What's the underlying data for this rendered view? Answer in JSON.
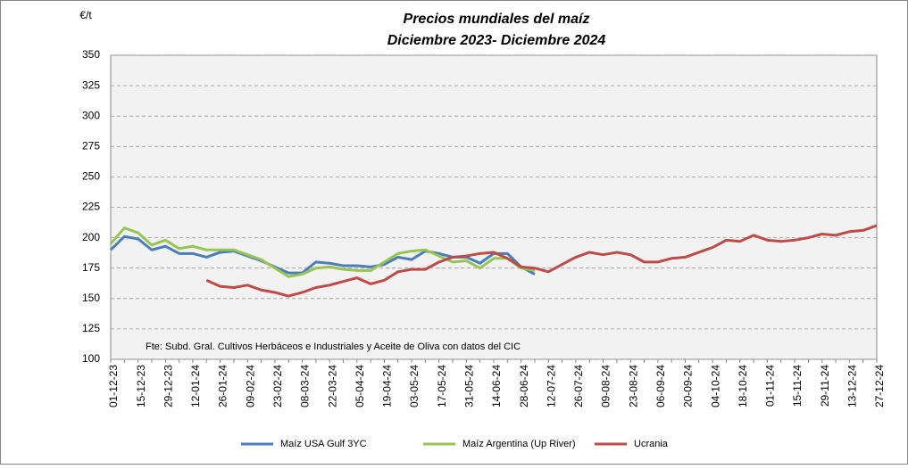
{
  "chart_data": {
    "type": "line",
    "title": "Precios mundiales del maíz",
    "subtitle": "Diciembre 2023- Diciembre 2024",
    "y_label": "€/t",
    "annotation": "Fte: Subd. Gral. Cultivos Herbáceos e Industriales y Aceite de Oliva con datos del CIC",
    "categories": [
      "01-12-23",
      null,
      "15-12-23",
      null,
      "29-12-23",
      null,
      "12-01-24",
      null,
      "26-01-24",
      null,
      "09-02-24",
      null,
      "23-02-24",
      null,
      "08-03-24",
      null,
      "22-03-24",
      null,
      "05-04-24",
      null,
      "19-04-24",
      null,
      "03-05-24",
      null,
      "17-05-24",
      null,
      "31-05-24",
      null,
      "14-06-24",
      null,
      "28-06-24",
      null,
      "12-07-24",
      null,
      "26-07-24",
      null,
      "09-08-24",
      null,
      "23-08-24",
      null,
      "06-09-24",
      null,
      "20-09-24",
      null,
      "04-10-24",
      null,
      "18-10-24",
      null,
      "01-11-24",
      null,
      "15-11-24",
      null,
      "29-11-24",
      null,
      "13-12-24",
      null,
      "27-12-24"
    ],
    "series": [
      {
        "name": "Maíz USA Gulf 3YC",
        "color": "#4a7ebb",
        "values": [
          190,
          201,
          199,
          190,
          193,
          187,
          187,
          184,
          188,
          189,
          185,
          181,
          176,
          171,
          171,
          180,
          179,
          177,
          177,
          176,
          178,
          184,
          182,
          189,
          187,
          184,
          184,
          179,
          187,
          187,
          176,
          170,
          null,
          null,
          null,
          null,
          null,
          null,
          null,
          null,
          null,
          null,
          null,
          null,
          null,
          null,
          null,
          null,
          null,
          null,
          null,
          null,
          null,
          null,
          null,
          null,
          null
        ]
      },
      {
        "name": "Maíz Argentina (Up River)",
        "color": "#98c454",
        "values": [
          195,
          208,
          204,
          194,
          198,
          191,
          193,
          190,
          190,
          190,
          186,
          182,
          175,
          168,
          170,
          175,
          176,
          174,
          173,
          173,
          180,
          187,
          189,
          190,
          185,
          180,
          181,
          175,
          183,
          183,
          175,
          173,
          null,
          null,
          null,
          null,
          null,
          null,
          null,
          null,
          null,
          null,
          null,
          null,
          null,
          null,
          null,
          null,
          null,
          null,
          null,
          null,
          null,
          null,
          null,
          null,
          null
        ]
      },
      {
        "name": "Ucrania",
        "color": "#be4b48",
        "values": [
          null,
          null,
          null,
          null,
          null,
          null,
          null,
          165,
          160,
          159,
          161,
          157,
          155,
          152,
          155,
          159,
          161,
          164,
          167,
          162,
          165,
          172,
          174,
          174,
          180,
          184,
          185,
          187,
          188,
          183,
          176,
          175,
          172,
          178,
          184,
          188,
          186,
          188,
          186,
          180,
          180,
          183,
          184,
          188,
          192,
          198,
          197,
          202,
          198,
          197,
          198,
          200,
          203,
          202,
          205,
          206,
          210
        ]
      }
    ],
    "ylim": [
      100,
      350
    ],
    "yticks": [
      100,
      125,
      150,
      175,
      200,
      225,
      250,
      275,
      300,
      325,
      350
    ],
    "grid": true
  }
}
